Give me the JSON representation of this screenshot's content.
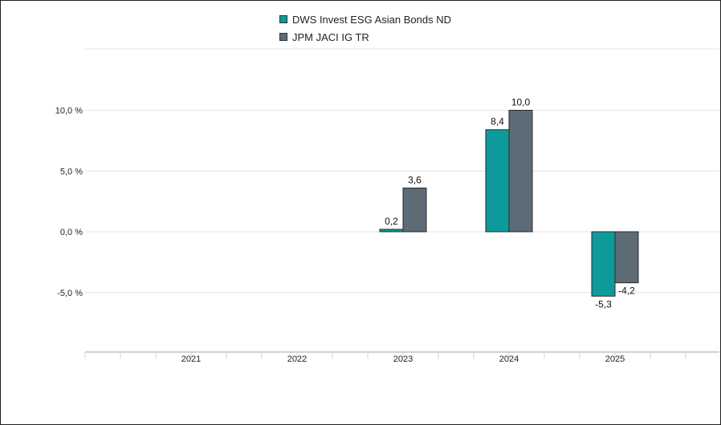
{
  "chart_data": {
    "type": "bar",
    "categories": [
      "2021",
      "2022",
      "2023",
      "2024",
      "2025"
    ],
    "series": [
      {
        "name": "DWS Invest ESG Asian Bonds ND",
        "color": "#0e9a9a",
        "values": [
          null,
          null,
          0.2,
          8.4,
          -5.3
        ],
        "labels": [
          "",
          "",
          "0,2",
          "8,4",
          "-5,3"
        ]
      },
      {
        "name": "JPM JACI IG TR",
        "color": "#5d6b77",
        "values": [
          null,
          null,
          3.6,
          10.0,
          -4.2
        ],
        "labels": [
          "",
          "",
          "3,6",
          "10,0",
          "-4,2"
        ]
      }
    ],
    "yticks": [
      -5,
      0,
      5,
      10
    ],
    "ytick_labels": [
      "-5,0 %",
      "0,0 %",
      "5,0 %",
      "10,0 %"
    ],
    "ylim": [
      -10,
      15
    ],
    "grid": true,
    "legend": "top-center"
  }
}
